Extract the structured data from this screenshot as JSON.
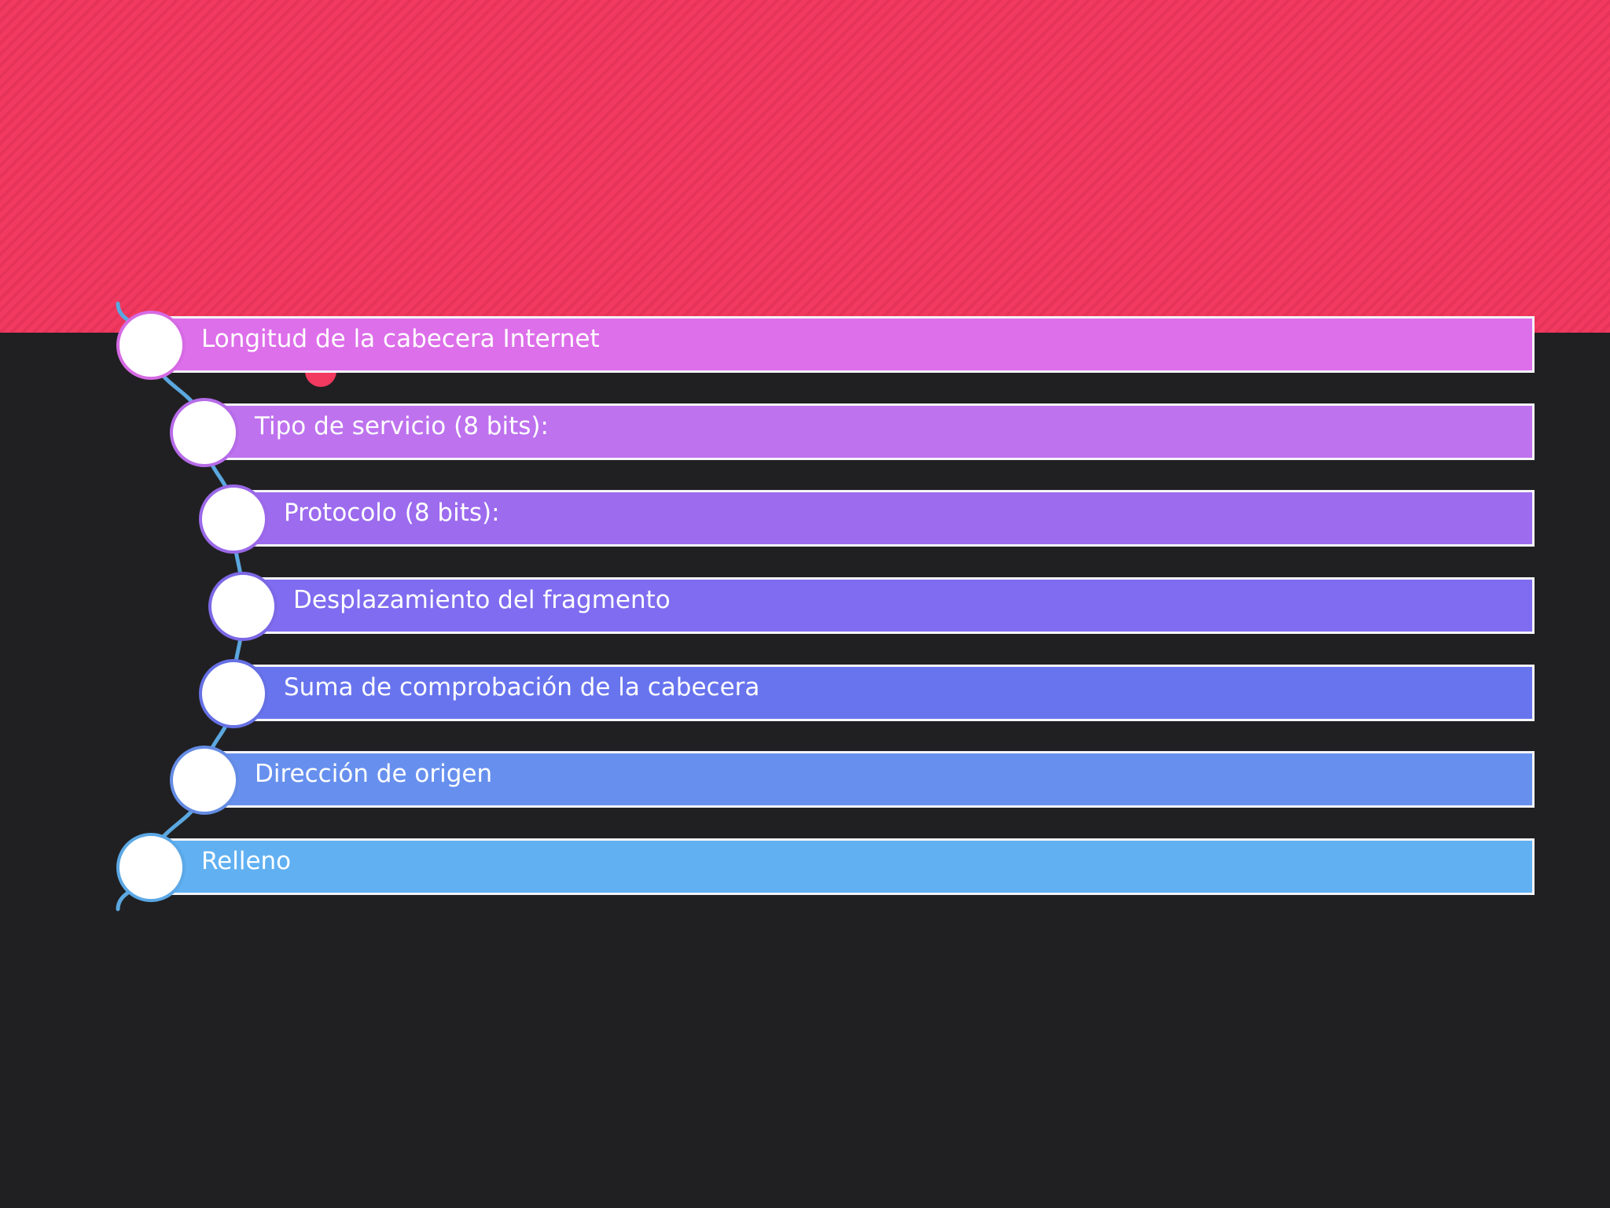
{
  "colors": {
    "background": "#202022",
    "header": "#f2395f",
    "bar_border": "#f4f4f8",
    "connector": "#5ba7df"
  },
  "items": [
    {
      "label": "Longitud de la cabecera Internet",
      "color": "#dd6fea",
      "node_border": "#d66ae4"
    },
    {
      "label": "Tipo de servicio (8 bits):",
      "color": "#be72ee",
      "node_border": "#b66be8"
    },
    {
      "label": "Protocolo (8 bits):",
      "color": "#9c6bee",
      "node_border": "#9a68e8"
    },
    {
      "label": "Desplazamiento del fragmento",
      "color": "#7f6cf0",
      "node_border": "#7b68e6"
    },
    {
      "label": "Suma de comprobación de la cabecera",
      "color": "#6874ee",
      "node_border": "#6670e4"
    },
    {
      "label": "Dirección de origen",
      "color": "#6790ee",
      "node_border": "#648ce4"
    },
    {
      "label": "Relleno",
      "color": "#60b0f2",
      "node_border": "#5ca8e6"
    }
  ]
}
